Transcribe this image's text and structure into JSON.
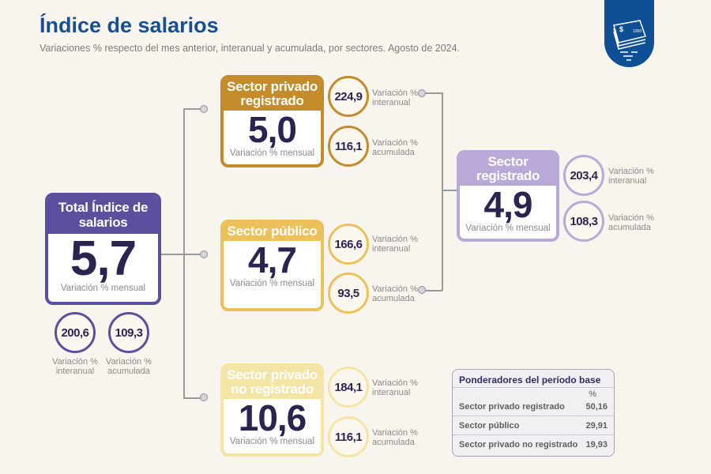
{
  "header": {
    "title": "Índice de salarios",
    "subtitle": "Variaciones % respecto del mes anterior, interanual y acumulada, por sectores. Agosto de 2024.",
    "badge_icon": "money-stack-icon"
  },
  "labels": {
    "mensual": "Variación % mensual",
    "interanual_1": "Variación %",
    "interanual_2": "interanual",
    "acumulada_1": "Variación %",
    "acumulada_2": "acumulada"
  },
  "total": {
    "title": "Total Índice de salarios",
    "mensual": "5,7",
    "interanual": "200,6",
    "acumulada": "109,3",
    "color": "#5b4f9e"
  },
  "privado_registrado": {
    "title": "Sector privado registrado",
    "mensual": "5,0",
    "interanual": "224,9",
    "acumulada": "116,1",
    "color": "#c38b2a"
  },
  "publico": {
    "title": "Sector público",
    "mensual": "4,7",
    "interanual": "166,6",
    "acumulada": "93,5",
    "color": "#ecc05a"
  },
  "privado_no_registrado": {
    "title": "Sector privado no registrado",
    "mensual": "10,6",
    "interanual": "184,1",
    "acumulada": "116,1",
    "color": "#f3e5a6"
  },
  "registrado": {
    "title": "Sector registrado",
    "mensual": "4,9",
    "interanual": "203,4",
    "acumulada": "108,3",
    "color": "#b8a9d9"
  },
  "ponderadores": {
    "title": "Ponderadores del período base",
    "unit": "%",
    "rows": [
      {
        "label": "Sector privado registrado",
        "value": "50,16"
      },
      {
        "label": "Sector público",
        "value": "29,91"
      },
      {
        "label": "Sector privado no registrado",
        "value": "19,93"
      }
    ]
  }
}
